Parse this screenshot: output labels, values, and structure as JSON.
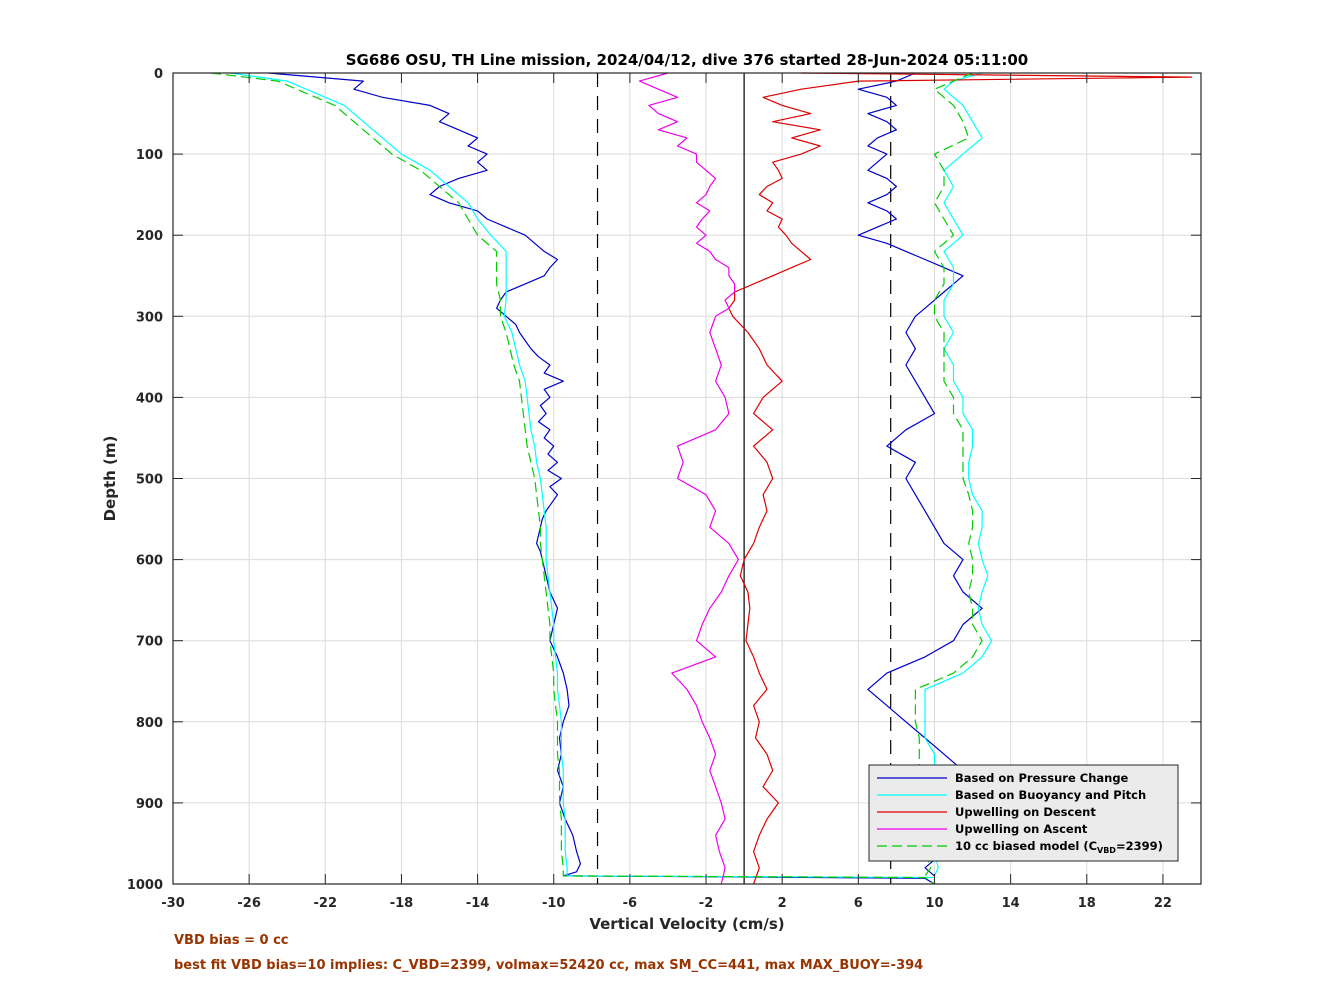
{
  "chart_data": {
    "type": "line",
    "title": "SG686 OSU, TH Line mission, 2024/04/12, dive 376 started 28-Jun-2024 05:11:00",
    "xlabel": "Vertical Velocity (cm/s)",
    "ylabel": "Depth (m)",
    "xlim": [
      -30,
      24
    ],
    "ylim": [
      1000,
      0
    ],
    "y_reversed": true,
    "grid": true,
    "xticks": [
      -30,
      -26,
      -22,
      -18,
      -14,
      -10,
      -6,
      -2,
      2,
      6,
      10,
      14,
      18,
      22
    ],
    "yticks": [
      0,
      100,
      200,
      300,
      400,
      500,
      600,
      700,
      800,
      900,
      1000
    ],
    "legend_position": "bottom-right",
    "reference_lines": [
      {
        "name": "zero",
        "x": 0,
        "style": "solid"
      },
      {
        "name": "minus-threshold",
        "x": -7.7,
        "style": "dashed"
      },
      {
        "name": "plus-threshold",
        "x": 7.7,
        "style": "dashed"
      }
    ],
    "series": [
      {
        "name": "Based on Pressure Change",
        "color": "#0000cc",
        "depth": [
          0,
          10,
          20,
          30,
          40,
          50,
          60,
          70,
          80,
          90,
          100,
          110,
          120,
          130,
          140,
          150,
          160,
          170,
          180,
          190,
          200,
          210,
          220,
          230,
          240,
          250,
          260,
          270,
          280,
          290,
          300,
          310,
          320,
          330,
          340,
          350,
          360,
          370,
          380,
          390,
          400,
          410,
          420,
          430,
          440,
          450,
          460,
          470,
          480,
          490,
          500,
          510,
          520,
          530,
          540,
          550,
          560,
          570,
          580,
          590,
          600,
          620,
          640,
          660,
          680,
          700,
          720,
          740,
          760,
          780,
          800,
          820,
          840,
          860,
          880,
          900,
          920,
          940,
          960,
          975,
          985,
          990,
          991,
          993,
          1000
        ],
        "values": [
          -25,
          -20,
          -20.5,
          -19,
          -16.5,
          -15.5,
          -16,
          -15,
          -14,
          -14.5,
          -13.5,
          -14,
          -13.5,
          -15,
          -16,
          -16.5,
          -15.5,
          -14,
          -13.5,
          -12.5,
          -11.5,
          -11,
          -10.5,
          -9.8,
          -10.2,
          -10.5,
          -11.5,
          -12.5,
          -12.8,
          -13,
          -12.5,
          -12,
          -11.8,
          -11.5,
          -11.2,
          -10.8,
          -10.2,
          -10.5,
          -9.5,
          -10.5,
          -10.2,
          -10.7,
          -10.4,
          -10.8,
          -10.2,
          -10.5,
          -10,
          -10.3,
          -9.8,
          -10.3,
          -9.6,
          -10.2,
          -9.8,
          -10.1,
          -10.4,
          -10.6,
          -10.7,
          -10.8,
          -10.9,
          -10.7,
          -10.6,
          -10.4,
          -10.2,
          -9.8,
          -10,
          -10.2,
          -9.8,
          -9.5,
          -9.3,
          -9.2,
          -9.5,
          -9.7,
          -9.6,
          -9.8,
          -9.5,
          -9.7,
          -9.4,
          -9.0,
          -8.8,
          -8.6,
          -8.8,
          -9.5,
          -2.0,
          9.5,
          10
        ]
      },
      {
        "name": "Based on Buoyancy and Pitch",
        "color": "#00ffff",
        "depth": [
          0,
          10,
          20,
          40,
          60,
          80,
          100,
          120,
          140,
          160,
          180,
          200,
          220,
          240,
          260,
          280,
          300,
          320,
          340,
          360,
          380,
          400,
          420,
          440,
          460,
          480,
          500,
          520,
          540,
          560,
          580,
          600,
          620,
          640,
          660,
          680,
          700,
          720,
          740,
          760,
          780,
          800,
          820,
          840,
          860,
          880,
          900,
          920,
          940,
          960,
          980,
          990,
          992,
          1000
        ],
        "values": [
          -27,
          -24,
          -23,
          -21,
          -20,
          -19,
          -18,
          -16.5,
          -15.5,
          -14.5,
          -14,
          -13.3,
          -12.5,
          -12.5,
          -12.5,
          -12.5,
          -12.6,
          -12.2,
          -12,
          -11.8,
          -11.5,
          -11.4,
          -11.3,
          -11.2,
          -11,
          -10.9,
          -10.7,
          -10.6,
          -10.5,
          -10.4,
          -10.4,
          -10.4,
          -10.3,
          -10.2,
          -10.1,
          -10,
          -10,
          -9.9,
          -9.8,
          -9.8,
          -9.7,
          -9.6,
          -9.6,
          -9.6,
          -9.5,
          -9.5,
          -9.5,
          -9.4,
          -9.4,
          -9.4,
          -9.3,
          -9.3,
          10,
          10
        ]
      },
      {
        "name": "Upwelling on Descent",
        "color": "#dd0000",
        "depth": [
          0,
          5,
          10,
          20,
          30,
          40,
          50,
          60,
          70,
          80,
          90,
          100,
          110,
          120,
          130,
          140,
          150,
          160,
          170,
          180,
          190,
          200,
          210,
          220,
          230,
          240,
          250,
          260,
          270,
          280,
          290,
          300,
          320,
          340,
          360,
          380,
          400,
          420,
          440,
          460,
          480,
          500,
          520,
          540,
          560,
          580,
          600,
          620,
          640,
          660,
          680,
          700,
          720,
          740,
          760,
          780,
          800,
          820,
          840,
          860,
          880,
          900,
          920,
          940,
          960,
          980,
          1000
        ],
        "values": [
          3,
          23.5,
          6,
          3,
          1,
          2,
          3.5,
          1.5,
          4,
          2.5,
          4,
          3,
          1.5,
          1.8,
          2,
          1.2,
          0.8,
          1.5,
          1.2,
          2,
          1.8,
          2.2,
          2.5,
          3,
          3.5,
          2.5,
          1.5,
          0.5,
          -0.5,
          -0.5,
          -0.8,
          -0.6,
          0.2,
          0.8,
          1.2,
          2,
          1,
          0.5,
          1.5,
          0.5,
          1.2,
          1.5,
          1,
          1.2,
          0.8,
          0.5,
          0,
          -0.2,
          0.2,
          0.3,
          0.2,
          0.1,
          0.5,
          0.8,
          1.2,
          0.5,
          0.8,
          0.6,
          1.2,
          1.5,
          1.0,
          1.8,
          1.2,
          0.8,
          0.5,
          0.8,
          0.5
        ]
      },
      {
        "name": "Upwelling on Ascent",
        "color": "#ee00ee",
        "depth": [
          0,
          10,
          20,
          30,
          40,
          50,
          60,
          70,
          80,
          90,
          100,
          110,
          120,
          130,
          140,
          150,
          160,
          170,
          180,
          190,
          200,
          210,
          220,
          230,
          240,
          250,
          260,
          270,
          280,
          290,
          300,
          320,
          340,
          360,
          380,
          400,
          420,
          440,
          460,
          480,
          500,
          520,
          540,
          560,
          580,
          600,
          620,
          640,
          660,
          680,
          700,
          720,
          740,
          760,
          780,
          800,
          820,
          840,
          860,
          880,
          900,
          920,
          940,
          960,
          980,
          1000
        ],
        "values": [
          -4,
          -5.5,
          -4.5,
          -3.5,
          -5,
          -4.5,
          -3.5,
          -4.5,
          -3,
          -3.5,
          -2.5,
          -2.5,
          -2,
          -1.5,
          -1.8,
          -2,
          -2.5,
          -1.8,
          -2.2,
          -2.5,
          -2,
          -2.5,
          -1.8,
          -1.5,
          -0.8,
          -0.8,
          -0.5,
          -0.5,
          -1,
          -0.8,
          -1.5,
          -1.8,
          -1.5,
          -1.2,
          -1.5,
          -1,
          -0.8,
          -1.5,
          -3.5,
          -3.2,
          -3.5,
          -2,
          -1.5,
          -1.8,
          -0.8,
          -0.3,
          -0.8,
          -1.2,
          -1.8,
          -2.2,
          -2.5,
          -1.5,
          -3.8,
          -3.0,
          -2.5,
          -2.2,
          -1.8,
          -1.5,
          -1.8,
          -1.5,
          -1.2,
          -1.0,
          -1.5,
          -1.3,
          -1.0,
          -1.2
        ]
      },
      {
        "name": "10 cc biased model (C_VBD=2399)",
        "color": "#00cc00",
        "style": "dashed",
        "depth": [
          0,
          10,
          20,
          40,
          60,
          80,
          100,
          120,
          140,
          160,
          180,
          200,
          220,
          240,
          260,
          280,
          300,
          320,
          340,
          360,
          380,
          400,
          420,
          440,
          460,
          480,
          500,
          520,
          540,
          560,
          580,
          600,
          620,
          640,
          660,
          680,
          700,
          720,
          740,
          760,
          780,
          800,
          820,
          840,
          860,
          880,
          900,
          920,
          940,
          960,
          980,
          990,
          992,
          1000
        ],
        "values": [
          -28,
          -24.5,
          -23.5,
          -21.5,
          -20.5,
          -19.5,
          -18.5,
          -17,
          -16,
          -15,
          -14.5,
          -14,
          -13,
          -13,
          -13,
          -12.8,
          -12.8,
          -12.5,
          -12.3,
          -12.1,
          -11.8,
          -11.7,
          -11.6,
          -11.5,
          -11.4,
          -11.2,
          -11.0,
          -10.9,
          -10.8,
          -10.7,
          -10.7,
          -10.6,
          -10.5,
          -10.4,
          -10.3,
          -10.2,
          -10.2,
          -10.1,
          -10.0,
          -10.0,
          -9.9,
          -9.8,
          -9.8,
          -9.8,
          -9.7,
          -9.7,
          -9.7,
          -9.6,
          -9.6,
          -9.6,
          -9.5,
          -9.5,
          9.5,
          10
        ]
      }
    ],
    "mirror_series": [
      {
        "of": "Based on Pressure Change",
        "depth": [
          0,
          10,
          20,
          30,
          40,
          50,
          60,
          70,
          80,
          90,
          100,
          110,
          120,
          130,
          140,
          150,
          160,
          170,
          180,
          190,
          200,
          210,
          220,
          230,
          240,
          250,
          260,
          270,
          280,
          290,
          300,
          320,
          340,
          360,
          380,
          400,
          420,
          440,
          460,
          480,
          500,
          520,
          540,
          560,
          580,
          600,
          620,
          640,
          660,
          680,
          700,
          720,
          740,
          760,
          780,
          800,
          820,
          840,
          860,
          880,
          900,
          920,
          940,
          960,
          980,
          990
        ],
        "values": [
          9,
          8,
          6,
          7.5,
          8,
          6.5,
          7.5,
          8,
          7,
          6.5,
          7.5,
          7,
          6.5,
          7.5,
          8,
          7.5,
          6.5,
          7.5,
          8,
          7,
          6,
          7.5,
          8.5,
          9.5,
          10.5,
          11.5,
          11,
          10.5,
          10,
          9.5,
          9,
          8.5,
          9,
          8.5,
          9,
          9.5,
          10,
          8.5,
          7.5,
          9,
          8.5,
          9,
          9.5,
          10,
          10.5,
          11.5,
          11,
          11.5,
          12.5,
          11.5,
          11,
          9.5,
          7.5,
          6.5,
          7.5,
          8.5,
          9.5,
          10.5,
          11.5,
          12,
          11,
          10,
          9.5,
          10.5,
          9.5,
          10
        ]
      },
      {
        "of": "Based on Buoyancy and Pitch",
        "depth": [
          0,
          10,
          20,
          40,
          60,
          80,
          100,
          120,
          140,
          160,
          180,
          200,
          220,
          240,
          260,
          280,
          300,
          320,
          340,
          360,
          380,
          400,
          420,
          440,
          460,
          480,
          500,
          520,
          540,
          560,
          580,
          600,
          620,
          640,
          660,
          680,
          700,
          720,
          740,
          760,
          780,
          800,
          820,
          840,
          860,
          880,
          900,
          920,
          940,
          960,
          980,
          990
        ],
        "values": [
          12.5,
          11,
          10.5,
          11.5,
          12,
          12.5,
          11.5,
          10.5,
          11,
          10.5,
          11,
          11.5,
          10.5,
          11,
          11,
          10.5,
          10.5,
          11,
          10.5,
          11,
          11,
          11.5,
          11.5,
          12,
          12,
          11.8,
          11.8,
          12,
          12.5,
          12.5,
          12.3,
          12.5,
          12.8,
          12.5,
          12.3,
          12.5,
          13,
          12.5,
          11.5,
          9.5,
          9.5,
          9.5,
          9.5,
          10,
          10,
          10,
          10.5,
          10,
          10,
          10,
          10.2,
          10
        ]
      },
      {
        "of": "10 cc biased model (C_VBD=2399)",
        "depth": [
          0,
          10,
          20,
          40,
          60,
          80,
          100,
          120,
          140,
          160,
          180,
          200,
          220,
          240,
          260,
          280,
          300,
          320,
          340,
          360,
          380,
          400,
          420,
          440,
          460,
          480,
          500,
          520,
          540,
          560,
          580,
          600,
          620,
          640,
          660,
          680,
          700,
          720,
          740,
          760,
          780,
          800,
          820,
          840,
          860,
          880,
          900,
          920,
          940,
          960,
          980,
          990
        ],
        "values": [
          12,
          11,
          10,
          11,
          11.5,
          11.8,
          10,
          10.5,
          10.5,
          10,
          10.5,
          11,
          10,
          10.5,
          10.5,
          10,
          10,
          10.5,
          10.5,
          10.5,
          10.5,
          11,
          11,
          11.5,
          11.5,
          11.5,
          11.5,
          11.8,
          12,
          12,
          11.8,
          12,
          12,
          11.8,
          12,
          12,
          12.5,
          12,
          11,
          9,
          9,
          9,
          9.2,
          9.2,
          9.2,
          9.2,
          9.5,
          9.5,
          9.5,
          9.5,
          9.8,
          9.5
        ]
      }
    ],
    "legend": [
      {
        "label": "Based on Pressure Change",
        "color": "#0000cc",
        "style": "solid"
      },
      {
        "label": "Based on Buoyancy and Pitch",
        "color": "#00ffff",
        "style": "solid"
      },
      {
        "label": "Upwelling on Descent",
        "color": "#dd0000",
        "style": "solid"
      },
      {
        "label": "Upwelling on Ascent",
        "color": "#ee00ee",
        "style": "solid"
      },
      {
        "label_main": "10 cc biased model (C",
        "label_sub": "VBD",
        "label_tail": "=2399)",
        "color": "#00cc00",
        "style": "dashed"
      }
    ]
  },
  "footnotes": {
    "vbd_bias": "VBD bias = 0 cc",
    "best_fit": "best fit VBD bias=10 implies: C_VBD=2399, volmax=52420 cc, max SM_CC=441, max MAX_BUOY=-394"
  },
  "colors": {
    "axis": "#262626",
    "grid": "#dcdcdc",
    "footnote": "#993300",
    "legend_bg": "#ebebeb"
  }
}
